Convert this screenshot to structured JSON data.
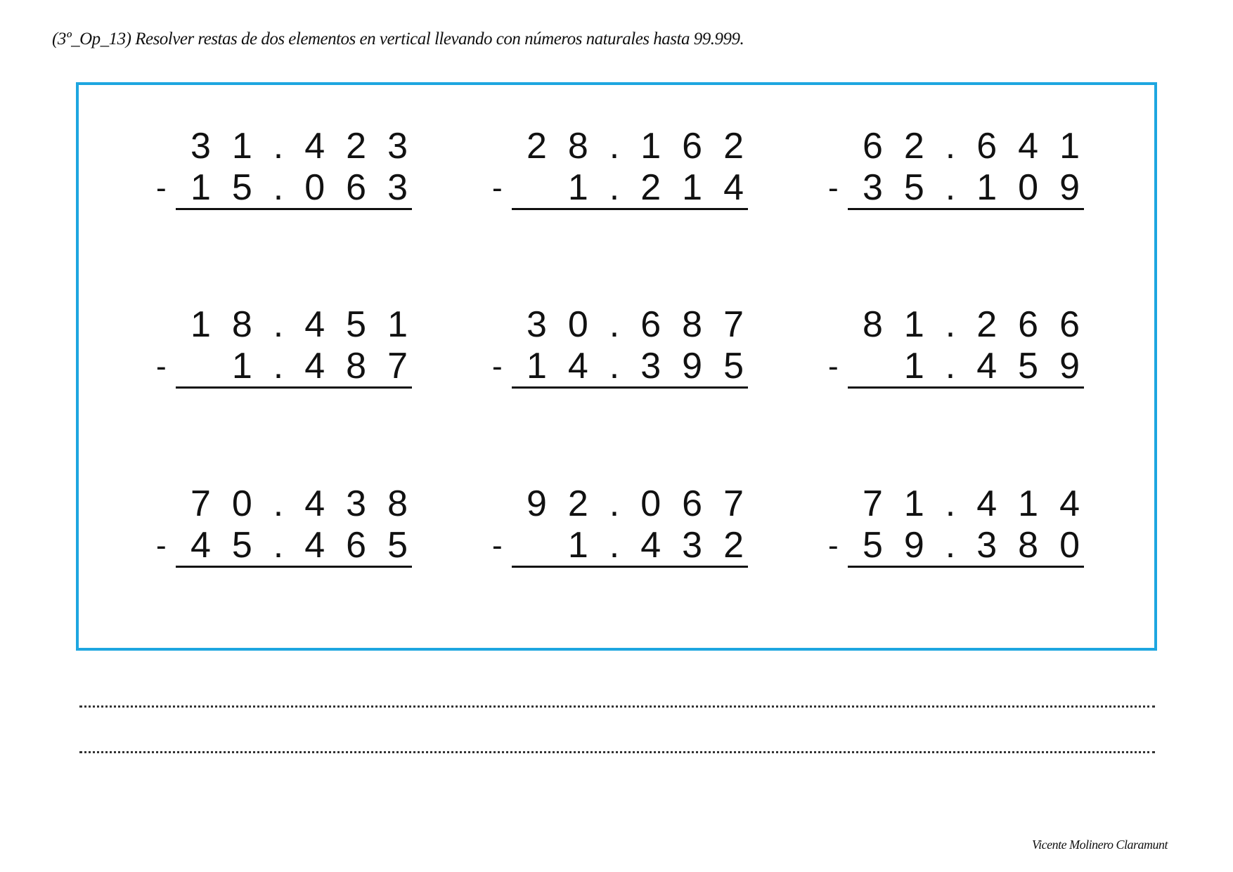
{
  "title": "(3º_Op_13) Resolver restas de dos elementos en vertical llevando con números naturales hasta 99.999.",
  "operator": "-",
  "problems": [
    {
      "minuend": "31.423",
      "subtrahend": "15.063"
    },
    {
      "minuend": "28.162",
      "subtrahend": "1.214"
    },
    {
      "minuend": "62.641",
      "subtrahend": "35.109"
    },
    {
      "minuend": "18.451",
      "subtrahend": "1.487"
    },
    {
      "minuend": "30.687",
      "subtrahend": "14.395"
    },
    {
      "minuend": "81.266",
      "subtrahend": "1.459"
    },
    {
      "minuend": "70.438",
      "subtrahend": "45.465"
    },
    {
      "minuend": "92.067",
      "subtrahend": "1.432"
    },
    {
      "minuend": "71.414",
      "subtrahend": "59.380"
    }
  ],
  "colors": {
    "frame": "#1ea6e0"
  },
  "footer": "Vicente Molinero Claramunt"
}
